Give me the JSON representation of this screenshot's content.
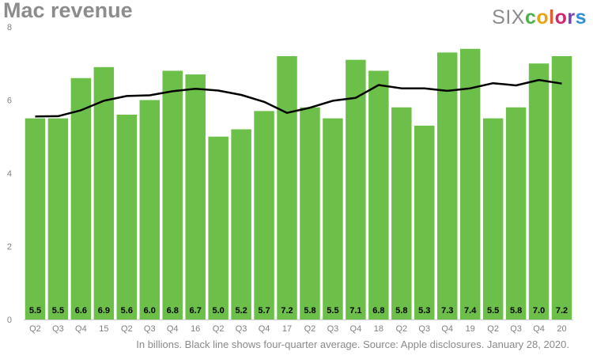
{
  "chart_data": {
    "type": "bar",
    "title": "Mac revenue",
    "categories": [
      "Q2",
      "Q3",
      "Q4",
      "15",
      "Q2",
      "Q3",
      "Q4",
      "16",
      "Q2",
      "Q3",
      "Q4",
      "17",
      "Q2",
      "Q3",
      "Q4",
      "18",
      "Q2",
      "Q3",
      "Q4",
      "19",
      "Q2",
      "Q3",
      "Q4",
      "20"
    ],
    "series": [
      {
        "type": "bar",
        "values": [
          5.5,
          5.5,
          6.6,
          6.9,
          5.6,
          6.0,
          6.8,
          6.7,
          5.0,
          5.2,
          5.7,
          7.2,
          5.8,
          5.5,
          7.1,
          6.8,
          5.8,
          5.3,
          7.3,
          7.4,
          5.5,
          5.8,
          7.0,
          7.2
        ],
        "color": "#6cc04a",
        "labels": [
          "5.5",
          "5.5",
          "6.6",
          "6.9",
          "5.6",
          "6.0",
          "6.8",
          "6.7",
          "5.0",
          "5.2",
          "5.7",
          "7.2",
          "5.8",
          "5.5",
          "7.1",
          "6.8",
          "5.8",
          "5.3",
          "7.3",
          "7.4",
          "5.5",
          "5.8",
          "7.0",
          "7.2"
        ]
      },
      {
        "type": "line",
        "values": [
          5.55,
          5.56,
          5.72,
          5.98,
          6.11,
          6.13,
          6.24,
          6.31,
          6.26,
          6.14,
          5.95,
          5.65,
          5.79,
          5.98,
          6.06,
          6.41,
          6.32,
          6.32,
          6.25,
          6.32,
          6.46,
          6.4,
          6.55,
          6.45
        ],
        "color": "#000000"
      }
    ],
    "ylim": [
      0,
      8
    ],
    "yticks": [
      0,
      2,
      4,
      6,
      8
    ],
    "grid": false,
    "legend": "none",
    "caption": "In billions. Black line shows four-quarter average. Source: Apple disclosures. January 28, 2020."
  },
  "brand": {
    "six": "SIX",
    "colors_letters": [
      {
        "char": "c",
        "color": "#4ab04a"
      },
      {
        "char": "o",
        "color": "#e8a317"
      },
      {
        "char": "l",
        "color": "#e85d2c"
      },
      {
        "char": "o",
        "color": "#d6266f"
      },
      {
        "char": "r",
        "color": "#7a3fb5"
      },
      {
        "char": "s",
        "color": "#2c8fd6"
      }
    ]
  }
}
